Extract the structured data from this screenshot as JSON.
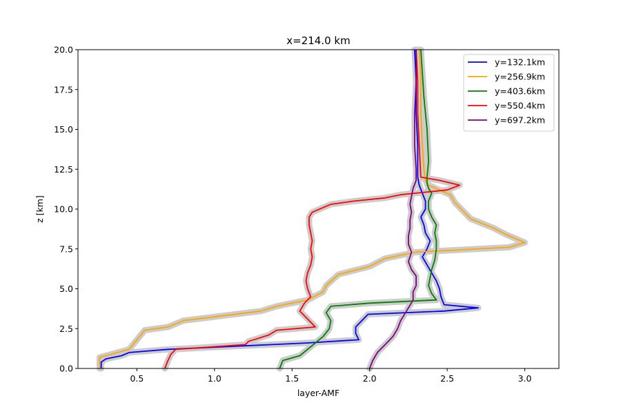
{
  "chart_data": {
    "type": "line",
    "title": "x=214.0 km",
    "xlabel": "layer-AMF",
    "ylabel": "z [km]",
    "xlim": [
      0.12,
      3.22
    ],
    "ylim": [
      0,
      20
    ],
    "xticks": [
      0.5,
      1.0,
      1.5,
      2.0,
      2.5,
      3.0
    ],
    "yticks": [
      0.0,
      2.5,
      5.0,
      7.5,
      10.0,
      12.5,
      15.0,
      17.5,
      20.0
    ],
    "xtick_labels": [
      "0.5",
      "1.0",
      "1.5",
      "2.0",
      "2.5",
      "3.0"
    ],
    "ytick_labels": [
      "0.0",
      "2.5",
      "5.0",
      "7.5",
      "10.0",
      "12.5",
      "15.0",
      "17.5",
      "20.0"
    ],
    "grid": false,
    "legend_position": "top-right",
    "uncertainty_band_color": "#cccccc",
    "series": [
      {
        "name": "y=132.1km",
        "color": "#0000ff",
        "points": [
          [
            0.27,
            0.0
          ],
          [
            0.27,
            0.4
          ],
          [
            0.3,
            0.6
          ],
          [
            0.4,
            0.8
          ],
          [
            0.45,
            1.0
          ],
          [
            0.7,
            1.2
          ],
          [
            1.6,
            1.6
          ],
          [
            1.93,
            1.8
          ],
          [
            1.91,
            2.2
          ],
          [
            1.91,
            2.6
          ],
          [
            1.96,
            3.1
          ],
          [
            1.99,
            3.4
          ],
          [
            2.48,
            3.6
          ],
          [
            2.7,
            3.8
          ],
          [
            2.48,
            4.0
          ],
          [
            2.46,
            4.5
          ],
          [
            2.45,
            5.0
          ],
          [
            2.43,
            5.5
          ],
          [
            2.4,
            6.0
          ],
          [
            2.37,
            6.5
          ],
          [
            2.34,
            7.0
          ],
          [
            2.37,
            7.5
          ],
          [
            2.39,
            8.0
          ],
          [
            2.36,
            8.5
          ],
          [
            2.35,
            9.0
          ],
          [
            2.33,
            9.5
          ],
          [
            2.36,
            10.0
          ],
          [
            2.36,
            10.5
          ],
          [
            2.34,
            11.0
          ],
          [
            2.32,
            11.5
          ],
          [
            2.31,
            12.0
          ],
          [
            2.31,
            14.0
          ],
          [
            2.3,
            16.0
          ],
          [
            2.3,
            18.0
          ],
          [
            2.29,
            20.0
          ]
        ]
      },
      {
        "name": "y=256.9km",
        "color": "#ffa500",
        "points": [
          [
            0.26,
            0.0
          ],
          [
            0.26,
            0.7
          ],
          [
            0.3,
            0.8
          ],
          [
            0.45,
            1.2
          ],
          [
            0.5,
            1.8
          ],
          [
            0.55,
            2.4
          ],
          [
            0.7,
            2.6
          ],
          [
            0.8,
            3.0
          ],
          [
            1.3,
            3.6
          ],
          [
            1.4,
            3.9
          ],
          [
            1.6,
            4.3
          ],
          [
            1.7,
            4.8
          ],
          [
            1.72,
            5.2
          ],
          [
            1.8,
            5.9
          ],
          [
            2.0,
            6.4
          ],
          [
            2.1,
            6.9
          ],
          [
            2.3,
            7.3
          ],
          [
            2.9,
            7.6
          ],
          [
            3.0,
            7.9
          ],
          [
            2.88,
            8.4
          ],
          [
            2.8,
            8.8
          ],
          [
            2.65,
            9.4
          ],
          [
            2.6,
            9.9
          ],
          [
            2.55,
            10.4
          ],
          [
            2.52,
            10.9
          ],
          [
            2.45,
            11.2
          ],
          [
            2.38,
            11.5
          ],
          [
            2.36,
            11.8
          ],
          [
            2.35,
            12.5
          ],
          [
            2.34,
            14.0
          ],
          [
            2.33,
            16.0
          ],
          [
            2.33,
            18.0
          ],
          [
            2.32,
            20.0
          ]
        ]
      },
      {
        "name": "y=403.6km",
        "color": "#008000",
        "points": [
          [
            1.42,
            0.0
          ],
          [
            1.44,
            0.5
          ],
          [
            1.55,
            0.8
          ],
          [
            1.6,
            1.2
          ],
          [
            1.65,
            1.6
          ],
          [
            1.7,
            2.0
          ],
          [
            1.74,
            2.5
          ],
          [
            1.75,
            3.0
          ],
          [
            1.72,
            3.5
          ],
          [
            1.75,
            3.9
          ],
          [
            2.0,
            4.1
          ],
          [
            2.43,
            4.3
          ],
          [
            2.4,
            4.7
          ],
          [
            2.38,
            5.2
          ],
          [
            2.39,
            5.7
          ],
          [
            2.4,
            6.2
          ],
          [
            2.42,
            6.8
          ],
          [
            2.43,
            7.5
          ],
          [
            2.43,
            8.0
          ],
          [
            2.42,
            8.5
          ],
          [
            2.43,
            9.0
          ],
          [
            2.4,
            9.5
          ],
          [
            2.38,
            10.0
          ],
          [
            2.38,
            10.5
          ],
          [
            2.4,
            11.0
          ],
          [
            2.38,
            11.3
          ],
          [
            2.37,
            11.6
          ],
          [
            2.37,
            12.0
          ],
          [
            2.38,
            13.0
          ],
          [
            2.37,
            15.0
          ],
          [
            2.35,
            17.0
          ],
          [
            2.33,
            20.0
          ]
        ]
      },
      {
        "name": "y=550.4km",
        "color": "#ff0000",
        "points": [
          [
            0.68,
            0.0
          ],
          [
            0.7,
            0.5
          ],
          [
            0.72,
            0.9
          ],
          [
            0.75,
            1.2
          ],
          [
            0.9,
            1.3
          ],
          [
            1.2,
            1.5
          ],
          [
            1.22,
            1.7
          ],
          [
            1.35,
            2.1
          ],
          [
            1.4,
            2.4
          ],
          [
            1.65,
            2.6
          ],
          [
            1.6,
            3.1
          ],
          [
            1.55,
            3.6
          ],
          [
            1.58,
            4.1
          ],
          [
            1.62,
            4.5
          ],
          [
            1.6,
            5.0
          ],
          [
            1.59,
            5.5
          ],
          [
            1.6,
            6.0
          ],
          [
            1.62,
            6.5
          ],
          [
            1.63,
            7.0
          ],
          [
            1.62,
            7.5
          ],
          [
            1.63,
            8.0
          ],
          [
            1.62,
            8.5
          ],
          [
            1.61,
            9.0
          ],
          [
            1.61,
            9.5
          ],
          [
            1.63,
            9.8
          ],
          [
            1.75,
            10.3
          ],
          [
            1.9,
            10.5
          ],
          [
            2.1,
            10.7
          ],
          [
            2.2,
            10.9
          ],
          [
            2.3,
            11.0
          ],
          [
            2.5,
            11.2
          ],
          [
            2.58,
            11.5
          ],
          [
            2.45,
            11.8
          ],
          [
            2.33,
            12.0
          ],
          [
            2.32,
            14.0
          ],
          [
            2.31,
            16.0
          ],
          [
            2.31,
            18.0
          ],
          [
            2.3,
            20.0
          ]
        ]
      },
      {
        "name": "y=697.2km",
        "color": "#800080",
        "points": [
          [
            2.0,
            0.0
          ],
          [
            2.02,
            0.5
          ],
          [
            2.05,
            1.0
          ],
          [
            2.1,
            1.5
          ],
          [
            2.15,
            2.0
          ],
          [
            2.18,
            2.5
          ],
          [
            2.2,
            3.0
          ],
          [
            2.25,
            3.8
          ],
          [
            2.28,
            4.3
          ],
          [
            2.28,
            4.8
          ],
          [
            2.3,
            5.2
          ],
          [
            2.3,
            5.8
          ],
          [
            2.27,
            6.2
          ],
          [
            2.25,
            6.7
          ],
          [
            2.27,
            7.3
          ],
          [
            2.25,
            7.8
          ],
          [
            2.25,
            8.3
          ],
          [
            2.26,
            8.8
          ],
          [
            2.26,
            9.3
          ],
          [
            2.27,
            9.8
          ],
          [
            2.26,
            10.3
          ],
          [
            2.27,
            10.8
          ],
          [
            2.28,
            11.3
          ],
          [
            2.3,
            11.8
          ],
          [
            2.3,
            12.5
          ],
          [
            2.29,
            14.0
          ],
          [
            2.29,
            16.0
          ],
          [
            2.3,
            18.0
          ],
          [
            2.3,
            20.0
          ]
        ]
      }
    ]
  }
}
